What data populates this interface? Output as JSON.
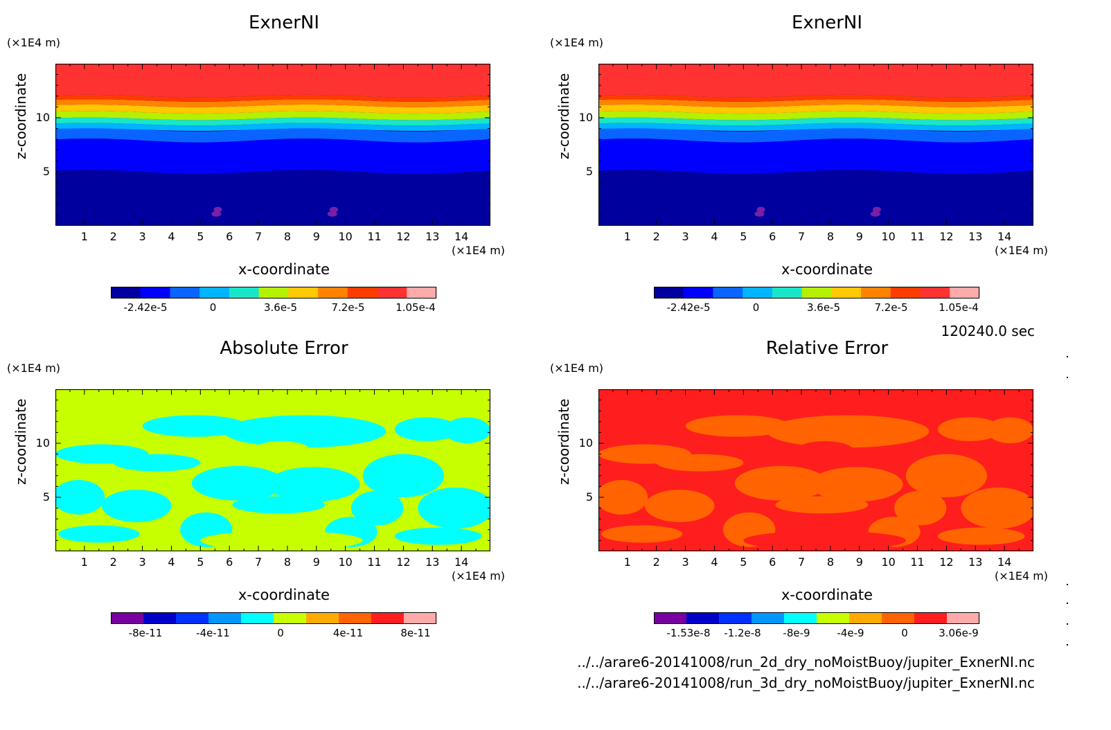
{
  "chart_data": [
    {
      "type": "heatmap",
      "title": "ExnerNI",
      "xlabel": "x-coordinate",
      "ylabel": "z-coordinate",
      "x_unit": "(×1E4 m)",
      "z_unit": "(×1E4 m)",
      "xlim": [
        0,
        15
      ],
      "ylim": [
        0,
        15
      ],
      "x_ticks": [
        1,
        2,
        3,
        4,
        5,
        6,
        7,
        8,
        9,
        10,
        11,
        12,
        13,
        14
      ],
      "y_ticks": [
        5,
        10
      ],
      "field": "stratified",
      "colorbar": {
        "colors": [
          "#00009e",
          "#0000ff",
          "#0a64ff",
          "#00b4ff",
          "#19e6c8",
          "#b4f000",
          "#ffc800",
          "#ff8200",
          "#ff3c00",
          "#ff3232",
          "#ffaaaa"
        ],
        "tick_labels": [
          "-2.42e-5",
          "0",
          "3.6e-5",
          "7.2e-5",
          "1.05e-4"
        ]
      }
    },
    {
      "type": "heatmap",
      "title": "ExnerNI",
      "xlabel": "x-coordinate",
      "ylabel": "z-coordinate",
      "x_unit": "(×1E4 m)",
      "z_unit": "(×1E4 m)",
      "xlim": [
        0,
        15
      ],
      "ylim": [
        0,
        15
      ],
      "x_ticks": [
        1,
        2,
        3,
        4,
        5,
        6,
        7,
        8,
        9,
        10,
        11,
        12,
        13,
        14
      ],
      "y_ticks": [
        5,
        10
      ],
      "field": "stratified",
      "colorbar": {
        "colors": [
          "#00009e",
          "#0000ff",
          "#0a64ff",
          "#00b4ff",
          "#19e6c8",
          "#b4f000",
          "#ffc800",
          "#ff8200",
          "#ff3c00",
          "#ff3232",
          "#ffaaaa"
        ],
        "tick_labels": [
          "-2.42e-5",
          "0",
          "3.6e-5",
          "7.2e-5",
          "1.05e-4"
        ]
      }
    },
    {
      "type": "heatmap",
      "title": "Absolute Error",
      "xlabel": "x-coordinate",
      "ylabel": "z-coordinate",
      "x_unit": "(×1E4 m)",
      "z_unit": "(×1E4 m)",
      "xlim": [
        0,
        15
      ],
      "ylim": [
        0,
        15
      ],
      "x_ticks": [
        1,
        2,
        3,
        4,
        5,
        6,
        7,
        8,
        9,
        10,
        11,
        12,
        13,
        14
      ],
      "y_ticks": [
        5,
        10
      ],
      "field": "error_abs",
      "colorbar": {
        "colors": [
          "#7800a0",
          "#0000c8",
          "#0032ff",
          "#0096ff",
          "#00ffff",
          "#c8ff00",
          "#ffaa00",
          "#ff6400",
          "#ff1e1e",
          "#ffaaaa"
        ],
        "tick_labels": [
          "-8e-11",
          "-4e-11",
          "0",
          "4e-11",
          "8e-11"
        ]
      }
    },
    {
      "type": "heatmap",
      "title": "Relative Error",
      "xlabel": "x-coordinate",
      "ylabel": "z-coordinate",
      "x_unit": "(×1E4 m)",
      "z_unit": "(×1E4 m)",
      "xlim": [
        0,
        15
      ],
      "ylim": [
        0,
        15
      ],
      "x_ticks": [
        1,
        2,
        3,
        4,
        5,
        6,
        7,
        8,
        9,
        10,
        11,
        12,
        13,
        14
      ],
      "y_ticks": [
        5,
        10
      ],
      "field": "error_rel",
      "colorbar": {
        "colors": [
          "#7800a0",
          "#0000c8",
          "#0032ff",
          "#0096ff",
          "#00ffff",
          "#c8ff00",
          "#ffaa00",
          "#ff6400",
          "#ff1e1e",
          "#ffaaaa"
        ],
        "tick_labels": [
          "-1.53e-8",
          "-1.2e-8",
          "-8e-9",
          "-4e-9",
          "0",
          "3.06e-9"
        ]
      }
    }
  ],
  "time_label": "120240.0 sec",
  "files": [
    "../../arare6-20141008/run_2d_dry_noMoistBuoy/jupiter_ExnerNI.nc",
    "../../arare6-20141008/run_3d_dry_noMoistBuoy/jupiter_ExnerNI.nc"
  ]
}
